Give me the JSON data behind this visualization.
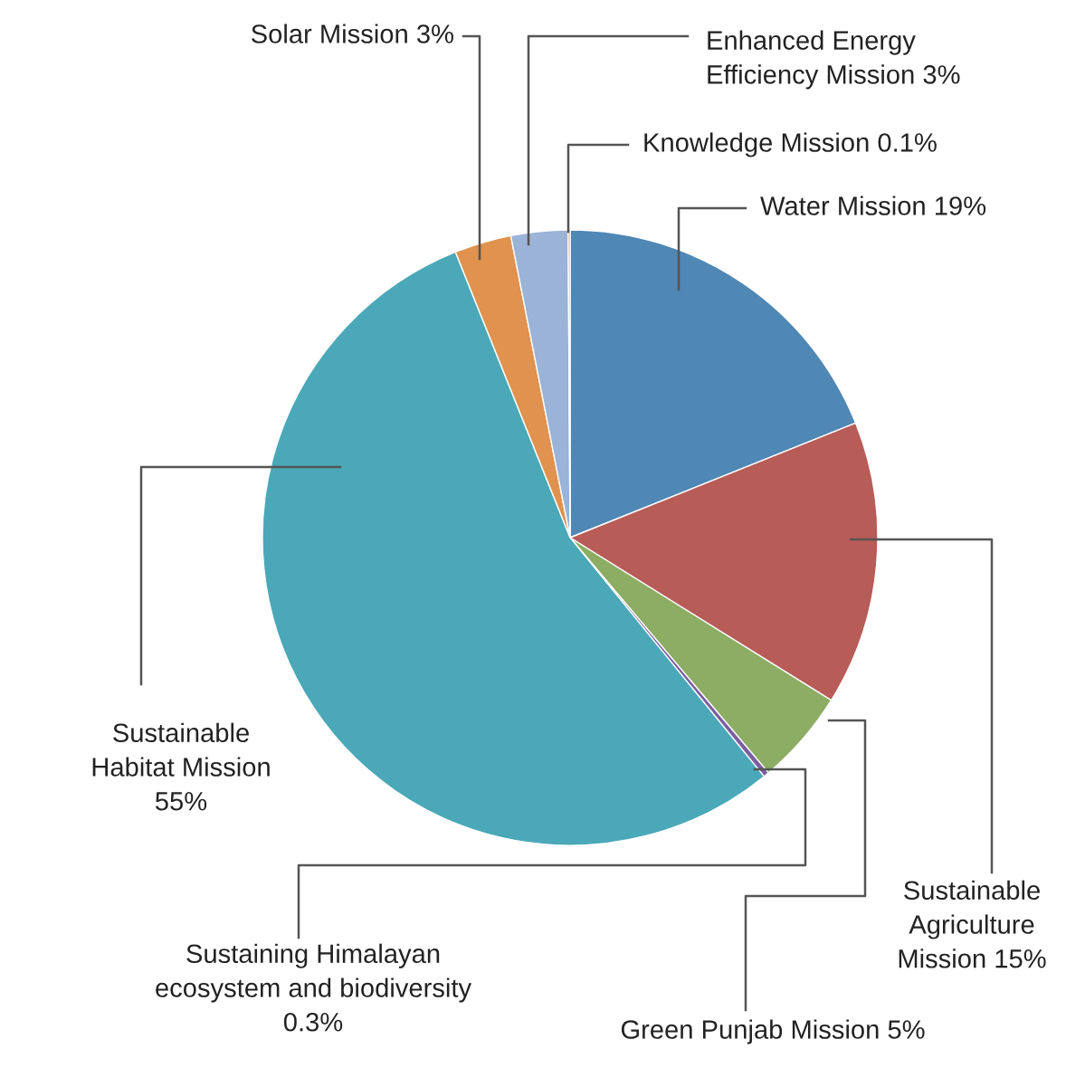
{
  "chart_data": {
    "type": "pie",
    "categories": [
      "Water Mission",
      "Sustainable\nAgriculture\nMission",
      "Green Punjab Mission",
      "Sustaining Himalayan\necosystem and biodiversity",
      "Sustainable\nHabitat Mission",
      "Solar Mission",
      "Enhanced Energy\nEfficiency Mission",
      "Knowledge Mission"
    ],
    "values": [
      19,
      15,
      5,
      0.3,
      55,
      3,
      3,
      0.1
    ],
    "value_labels": [
      "19%",
      "15%",
      "5%",
      "0.3%",
      "55%",
      "3%",
      "3%",
      "0.1%"
    ],
    "colors": [
      "#4f87b5",
      "#b85c58",
      "#8cad63",
      "#7b5fa0",
      "#4aa8b8",
      "#e0924e",
      "#9ab3d6",
      "#e07a5f"
    ],
    "legend": false
  }
}
